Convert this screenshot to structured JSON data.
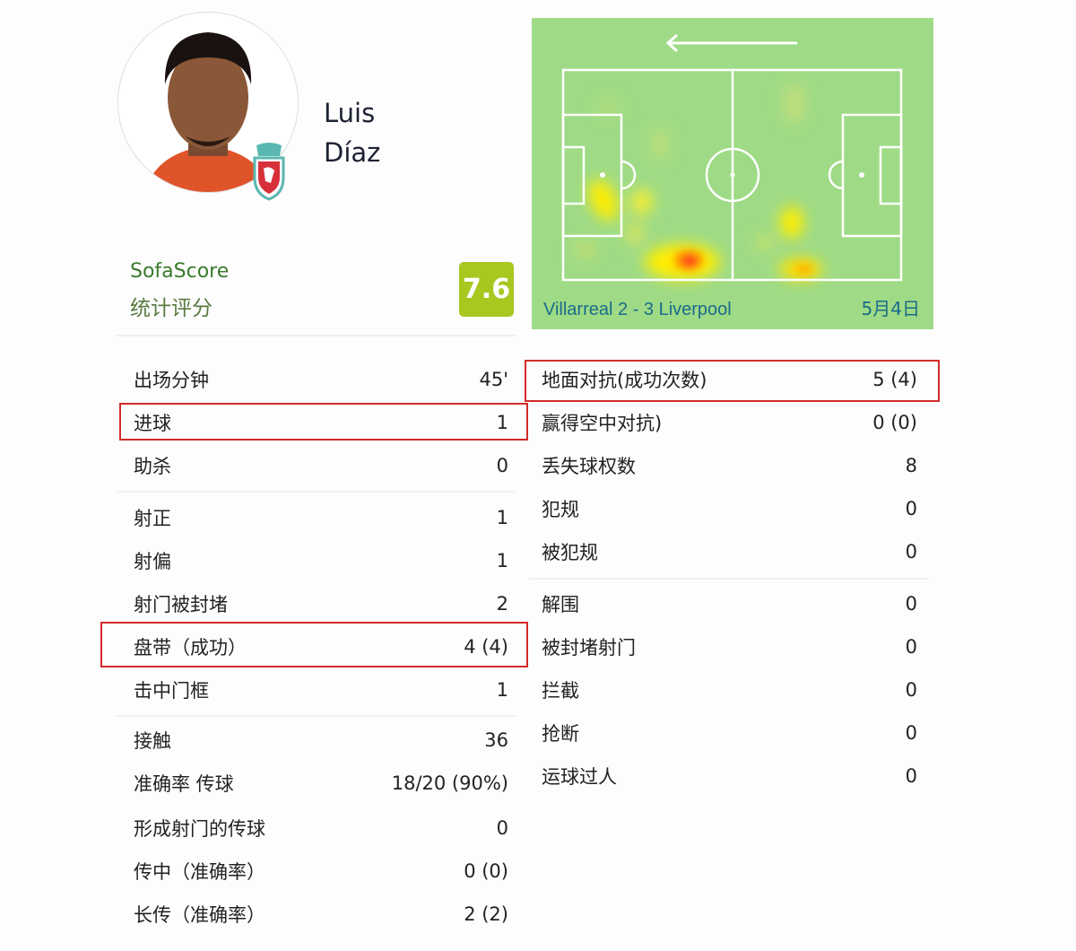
{
  "player": {
    "first_name": "Luis",
    "last_name": "Díaz",
    "club_badge": "liverpool-crest"
  },
  "rating": {
    "brand": "SofaScore",
    "label": "统计评分",
    "value": "7.6",
    "color": "#a8c820"
  },
  "heatmap": {
    "match": "Villarreal 2 - 3 Liverpool",
    "date": "5月4日",
    "direction": "left",
    "pitch_color": "#9fdb86"
  },
  "left_stats": [
    {
      "label": "出场分钟",
      "value": "45'"
    },
    {
      "label": "进球",
      "value": "1",
      "highlighted": true
    },
    {
      "label": "助杀",
      "value": "0"
    },
    {
      "label": "射正",
      "value": "1"
    },
    {
      "label": "射偏",
      "value": "1"
    },
    {
      "label": "射门被封堵",
      "value": "2"
    },
    {
      "label": "盘带（成功）",
      "value": "4 (4)",
      "highlighted": true
    },
    {
      "label": "击中门框",
      "value": "1"
    },
    {
      "label": "接触",
      "value": "36"
    },
    {
      "label": "准确率 传球",
      "value": "18/20 (90%)"
    },
    {
      "label": "形成射门的传球",
      "value": "0"
    },
    {
      "label": "传中（准确率）",
      "value": "0 (0)"
    },
    {
      "label": "长传（准确率）",
      "value": "2 (2)"
    }
  ],
  "right_stats": [
    {
      "label": "地面对抗(成功次数)",
      "value": "5 (4)",
      "highlighted": true
    },
    {
      "label": "赢得空中对抗)",
      "value": "0 (0)"
    },
    {
      "label": "丢失球权数",
      "value": "8"
    },
    {
      "label": "犯规",
      "value": "0"
    },
    {
      "label": "被犯规",
      "value": "0"
    },
    {
      "label": "解围",
      "value": "0"
    },
    {
      "label": "被封堵射门",
      "value": "0"
    },
    {
      "label": "拦截",
      "value": "0"
    },
    {
      "label": "抢断",
      "value": "0"
    },
    {
      "label": "运球过人",
      "value": "0"
    }
  ]
}
